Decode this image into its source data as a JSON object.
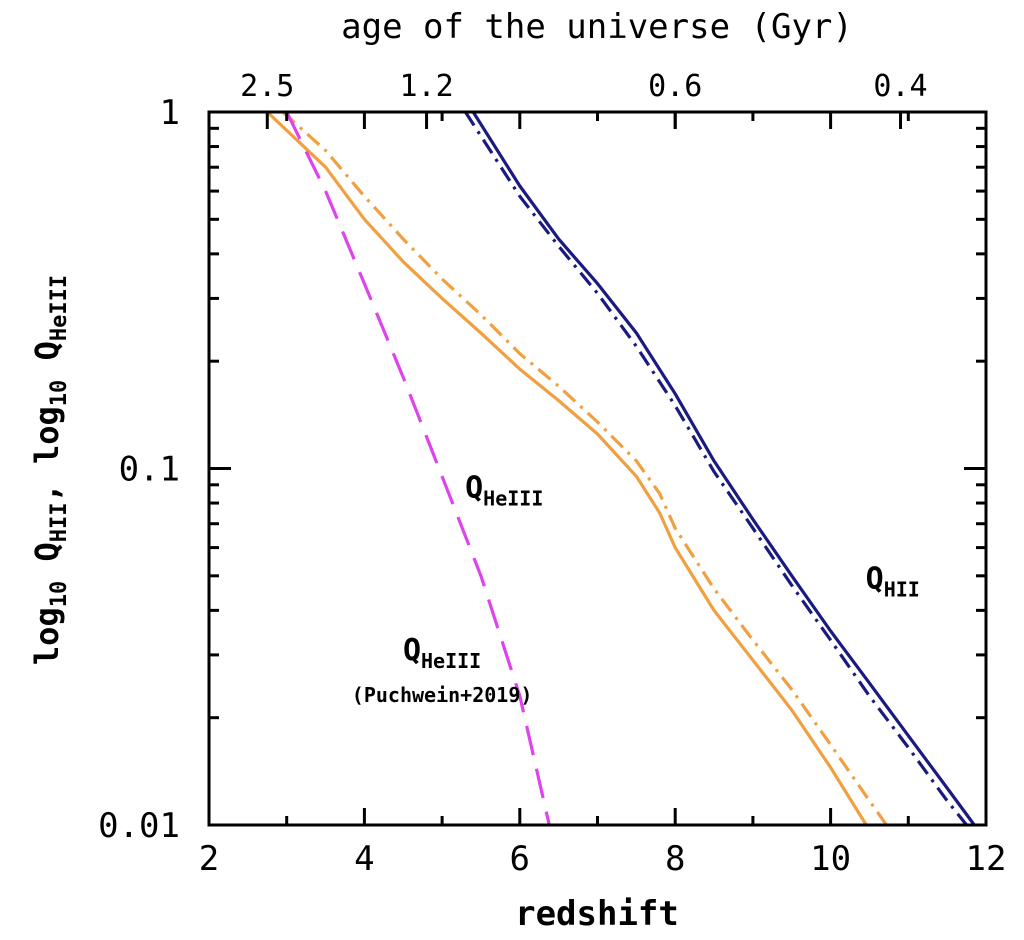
{
  "chart_data": {
    "type": "line",
    "title": "",
    "xlabel": "redshift",
    "ylabel_parts": [
      "log",
      "10",
      " Q",
      "HII",
      ", log",
      "10",
      " Q",
      "HeIII"
    ],
    "top_axis_label": "age of the universe (Gyr)",
    "xlim": [
      2,
      12
    ],
    "ylim": [
      0.01,
      1
    ],
    "yscale": "log",
    "x_ticks": [
      2,
      4,
      6,
      8,
      10,
      12
    ],
    "x_tick_labels": [
      "2",
      "4",
      "6",
      "8",
      "10",
      "12"
    ],
    "y_ticks": [
      0.01,
      0.1,
      1
    ],
    "y_tick_labels": [
      "0.01",
      "0.1",
      "1"
    ],
    "top_ticks": [
      {
        "z": 2.75,
        "label": "2.5"
      },
      {
        "z": 4.8,
        "label": "1.2"
      },
      {
        "z": 8.0,
        "label": "0.6"
      },
      {
        "z": 10.9,
        "label": "0.4"
      }
    ],
    "series": [
      {
        "name": "Q_HII",
        "style": "solid",
        "color": "#1a1a80",
        "points": [
          [
            5.4,
            1.0
          ],
          [
            6.0,
            0.62
          ],
          [
            6.5,
            0.44
          ],
          [
            7.0,
            0.33
          ],
          [
            7.5,
            0.24
          ],
          [
            8.0,
            0.162
          ],
          [
            8.5,
            0.105
          ],
          [
            9.0,
            0.072
          ],
          [
            9.5,
            0.05
          ],
          [
            10.0,
            0.035
          ],
          [
            10.5,
            0.025
          ],
          [
            11.0,
            0.0178
          ],
          [
            11.5,
            0.0127
          ],
          [
            11.85,
            0.01
          ]
        ]
      },
      {
        "name": "Q_HII (dash-dot)",
        "style": "dashdot",
        "color": "#1a1a80",
        "points": [
          [
            5.3,
            1.0
          ],
          [
            6.0,
            0.58
          ],
          [
            6.5,
            0.42
          ],
          [
            7.0,
            0.31
          ],
          [
            7.5,
            0.22
          ],
          [
            8.0,
            0.15
          ],
          [
            8.5,
            0.098
          ],
          [
            9.0,
            0.068
          ],
          [
            9.5,
            0.047
          ],
          [
            10.0,
            0.033
          ],
          [
            10.5,
            0.023
          ],
          [
            11.0,
            0.0165
          ],
          [
            11.5,
            0.0117
          ],
          [
            11.75,
            0.01
          ]
        ]
      },
      {
        "name": "Q_HeIII",
        "style": "solid",
        "color": "#f0a040",
        "points": [
          [
            2.75,
            1.0
          ],
          [
            3.5,
            0.7
          ],
          [
            4.0,
            0.5
          ],
          [
            4.5,
            0.38
          ],
          [
            5.0,
            0.3
          ],
          [
            5.5,
            0.24
          ],
          [
            6.0,
            0.19
          ],
          [
            6.5,
            0.155
          ],
          [
            7.0,
            0.125
          ],
          [
            7.5,
            0.095
          ],
          [
            7.8,
            0.075
          ],
          [
            8.0,
            0.06
          ],
          [
            8.5,
            0.04
          ],
          [
            9.0,
            0.029
          ],
          [
            9.5,
            0.021
          ],
          [
            10.0,
            0.0145
          ],
          [
            10.46,
            0.01
          ]
        ]
      },
      {
        "name": "Q_HeIII (dash-dot)",
        "style": "dashdot",
        "color": "#f0a040",
        "points": [
          [
            2.95,
            1.0
          ],
          [
            3.5,
            0.78
          ],
          [
            4.0,
            0.58
          ],
          [
            4.5,
            0.44
          ],
          [
            5.0,
            0.34
          ],
          [
            5.5,
            0.27
          ],
          [
            6.0,
            0.21
          ],
          [
            6.5,
            0.17
          ],
          [
            7.0,
            0.135
          ],
          [
            7.5,
            0.105
          ],
          [
            7.8,
            0.085
          ],
          [
            8.0,
            0.068
          ],
          [
            8.5,
            0.046
          ],
          [
            9.0,
            0.033
          ],
          [
            9.5,
            0.024
          ],
          [
            10.0,
            0.0168
          ],
          [
            10.5,
            0.0117
          ],
          [
            10.72,
            0.01
          ]
        ]
      },
      {
        "name": "Q_HeIII (Puchwein+2019)",
        "style": "dashed",
        "color": "#dd44ee",
        "points": [
          [
            3.0,
            1.0
          ],
          [
            3.5,
            0.6
          ],
          [
            4.0,
            0.33
          ],
          [
            4.5,
            0.18
          ],
          [
            5.0,
            0.095
          ],
          [
            5.5,
            0.05
          ],
          [
            6.0,
            0.023
          ],
          [
            6.38,
            0.01
          ]
        ]
      }
    ],
    "annotations": [
      {
        "main": "Q",
        "sub": "HII",
        "note": "",
        "color": "#1a1a80",
        "x": 10.8,
        "y": 0.046
      },
      {
        "main": "Q",
        "sub": "HeIII",
        "note": "",
        "color": "#f0a040",
        "x": 5.8,
        "y": 0.083
      },
      {
        "main": "Q",
        "sub": "HeIII",
        "note": "(Puchwein+2019)",
        "color": "#dd44ee",
        "x": 5.0,
        "y": 0.029
      }
    ]
  }
}
